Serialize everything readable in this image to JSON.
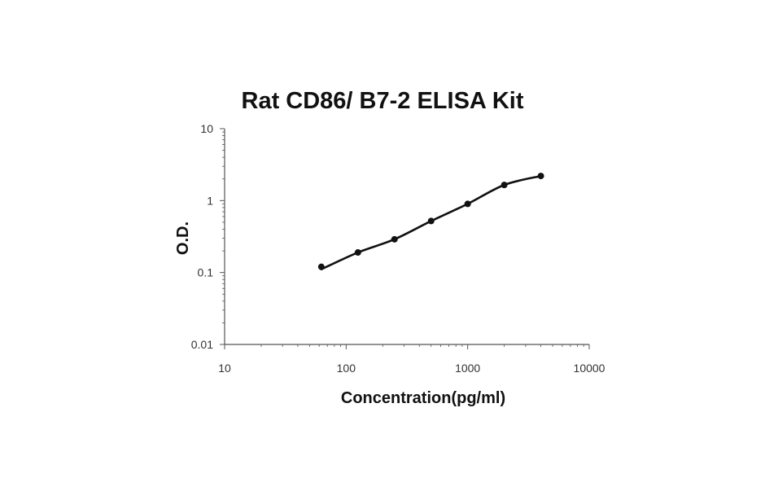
{
  "chart_data": {
    "type": "scatter",
    "title": "Rat CD86/ B7-2 ELISA Kit",
    "xlabel": "Concentration(pg/ml)",
    "ylabel": "O.D.",
    "x_scale": "log",
    "y_scale": "log",
    "xlim": [
      10,
      10000
    ],
    "ylim": [
      0.01,
      10
    ],
    "x_ticks": [
      "10",
      "100",
      "1000",
      "10000"
    ],
    "y_ticks": [
      "0.01",
      "0.1",
      "1",
      "10"
    ],
    "grid": false,
    "legend": "none",
    "series": [
      {
        "points": [
          {
            "x": 62.5,
            "y": 0.12
          },
          {
            "x": 125,
            "y": 0.19
          },
          {
            "x": 250,
            "y": 0.29
          },
          {
            "x": 500,
            "y": 0.52
          },
          {
            "x": 1000,
            "y": 0.9
          },
          {
            "x": 2000,
            "y": 1.65
          },
          {
            "x": 4000,
            "y": 2.2
          }
        ],
        "fit": "smooth curve",
        "color": "#111111"
      }
    ]
  }
}
